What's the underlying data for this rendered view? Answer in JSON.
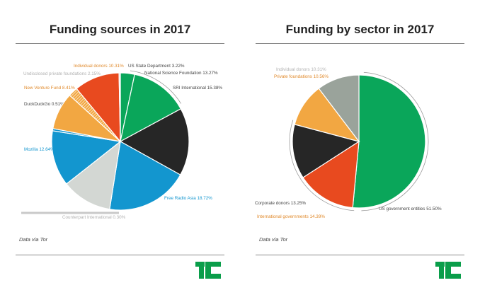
{
  "left_title": "Funding sources in 2017",
  "right_title": "Funding by sector in 2017",
  "source_note_left": "Data via Tor",
  "source_note_right": "Data via Tor",
  "logo_name": "tc-logo",
  "colors": {
    "green": "#0aa65a",
    "dark": "#262626",
    "blue": "#1396cf",
    "orange": "#f2a742",
    "red": "#e84a1f",
    "gray": "#9aa39b",
    "lightgray": "#d3d7d3",
    "logo_green": "#0a9e4a"
  },
  "chart_data": [
    {
      "type": "pie",
      "title": "Funding sources in 2017",
      "slices": [
        {
          "label": "US State Department",
          "value": 3.22,
          "text": "US State Department 3.22%",
          "color": "#0aa65a",
          "label_color": "#444444"
        },
        {
          "label": "National Science Foundation",
          "value": 13.27,
          "text": "National Science Foundation 13.27%",
          "color": "#0aa65a",
          "label_color": "#444444"
        },
        {
          "label": "SRI International",
          "value": 15.38,
          "text": "SRI International 15.38%",
          "color": "#262626",
          "label_color": "#444444"
        },
        {
          "label": "Free Radio Asia",
          "value": 18.72,
          "text": "Free Radio Asia 18.72%",
          "color": "#1396cf",
          "label_color": "#1396cf"
        },
        {
          "label": "Sweden International Development Cooperation",
          "value": 11.44,
          "text": "",
          "color": "#d3d7d3",
          "label_color": "#b0b0b0"
        },
        {
          "label": "Mozilla",
          "value": 12.64,
          "text": "Mozilla 12.64%",
          "color": "#1396cf",
          "label_color": "#1396cf"
        },
        {
          "label": "DuckDuckGo",
          "value": 0.51,
          "text": "DuckDuckGo 0.51%",
          "color": "#1396cf",
          "label_color": "#444444"
        },
        {
          "label": "New Venture Fund",
          "value": 8.41,
          "text": "New Venture Fund 8.41%",
          "color": "#f2a742",
          "label_color": "#e0892a"
        },
        {
          "label": "Undisclosed private foundations",
          "value": 2.15,
          "text": "Undisclosed private foundations 2.15%",
          "color": "#f2a742",
          "label_color": "#b0b0b0",
          "hatched": true
        },
        {
          "label": "Individual donors",
          "value": 10.31,
          "text": "Individual donors 10.31%",
          "color": "#e84a1f",
          "label_color": "#e0892a"
        },
        {
          "label": "Counterpart International",
          "value": 0.3,
          "text": "Counterpart International 0.30%",
          "color": "#d3d7d3",
          "label_color": "#b0b0b0"
        }
      ]
    },
    {
      "type": "pie",
      "title": "Funding by sector in 2017",
      "slices": [
        {
          "label": "US government entities",
          "value": 51.5,
          "text": "US government entities 51.50%",
          "color": "#0aa65a",
          "label_color": "#444444"
        },
        {
          "label": "International governments",
          "value": 14.39,
          "text": "International governments 14.39%",
          "color": "#e84a1f",
          "label_color": "#e0892a"
        },
        {
          "label": "Corporate donors",
          "value": 13.25,
          "text": "Corporate donors 13.25%",
          "color": "#262626",
          "label_color": "#444444"
        },
        {
          "label": "Private foundations",
          "value": 10.56,
          "text": "Private foundations 10.56%",
          "color": "#f2a742",
          "label_color": "#e0892a"
        },
        {
          "label": "Individual donors",
          "value": 10.31,
          "text": "Individual donors 10.31%",
          "color": "#9aa39b",
          "label_color": "#b0b0b0"
        }
      ]
    }
  ]
}
